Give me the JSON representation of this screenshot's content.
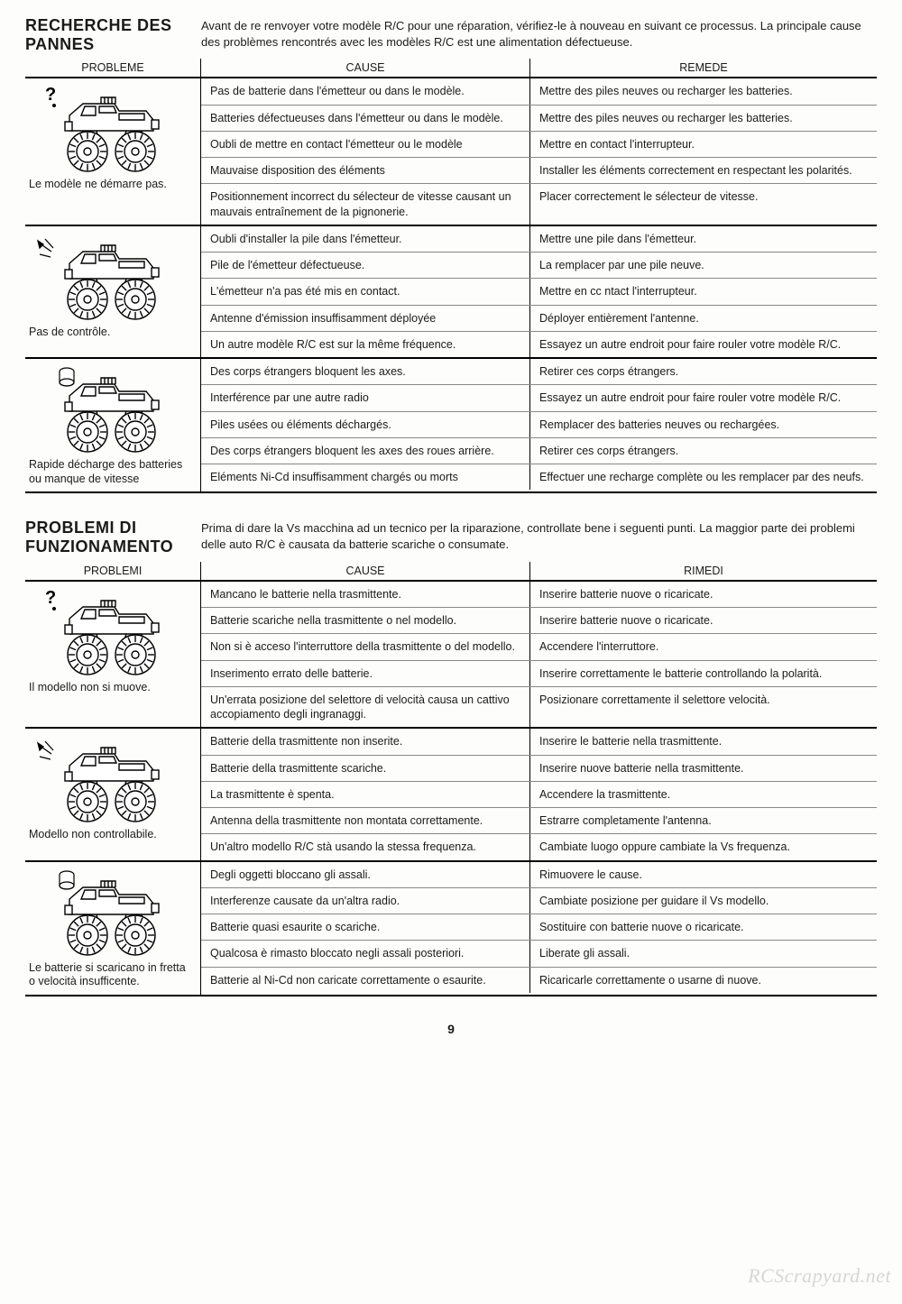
{
  "page_number": "9",
  "watermark": "RCScrapyard.net",
  "sections": [
    {
      "title": "RECHERCHE DES PANNES",
      "intro": "Avant de re renvoyer votre modèle R/C pour une réparation, vérifiez-le à nouveau en suivant ce processus. La principale cause des problèmes rencontrés avec les modèles R/C est une alimentation défectueuse.",
      "headers": {
        "h1": "PROBLEME",
        "h2": "CAUSE",
        "h3": "REMEDE"
      },
      "groups": [
        {
          "problem": "Le modèle ne démarre pas.",
          "icon": "question",
          "rows": [
            {
              "cause": "Pas de batterie dans l'émetteur ou dans le modèle.",
              "remedy": "Mettre des piles neuves ou recharger les batteries."
            },
            {
              "cause": "Batteries défectueuses dans l'émetteur ou dans le modèle.",
              "remedy": "Mettre des piles neuves ou recharger les batteries."
            },
            {
              "cause": "Oubli de mettre en contact l'émetteur ou le modèle",
              "remedy": "Mettre en contact l'interrupteur."
            },
            {
              "cause": "Mauvaise disposition des éléments",
              "remedy": "Installer les éléments correctement en respectant les polarités."
            },
            {
              "cause": "Positionnement incorrect du sélecteur de vitesse causant un mauvais entraînement de la pignonerie.",
              "remedy": "Placer correctement le sélecteur de vitesse."
            }
          ]
        },
        {
          "problem": "Pas de contrôle.",
          "icon": "sparks",
          "rows": [
            {
              "cause": "Oubli d'installer la pile dans l'émetteur.",
              "remedy": "Mettre une pile dans l'émetteur."
            },
            {
              "cause": "Pile de l'émetteur défectueuse.",
              "remedy": "La remplacer par une pile neuve."
            },
            {
              "cause": "L'émetteur n'a pas été mis en contact.",
              "remedy": "Mettre en cc ntact l'interrupteur."
            },
            {
              "cause": "Antenne d'émission insuffisamment déployée",
              "remedy": "Déployer entièrement l'antenne."
            },
            {
              "cause": "Un autre modèle R/C est sur la même fréquence.",
              "remedy": "Essayez un autre endroit pour faire rouler votre modèle R/C."
            }
          ]
        },
        {
          "problem": "Rapide décharge des batteries ou manque de vitesse",
          "icon": "battery",
          "rows": [
            {
              "cause": "Des corps étrangers bloquent les axes.",
              "remedy": "Retirer ces corps étrangers."
            },
            {
              "cause": "Interférence par une autre radio",
              "remedy": "Essayez un autre endroit pour faire rouler votre modèle R/C."
            },
            {
              "cause": "Piles usées ou éléments déchargés.",
              "remedy": "Remplacer des batteries neuves ou rechargées."
            },
            {
              "cause": "Des corps étrangers bloquent les axes des roues arrière.",
              "remedy": "Retirer ces corps étrangers."
            },
            {
              "cause": "Eléments Ni-Cd insuffisamment chargés ou morts",
              "remedy": "Effectuer une recharge complète ou les remplacer par des neufs."
            }
          ]
        }
      ]
    },
    {
      "title": "PROBLEMI DI FUNZIONAMENTO",
      "intro": "Prima di dare la Vs macchina ad un tecnico per la riparazione, controllate bene i seguenti punti. La maggior parte dei problemi delle auto R/C è causata da batterie scariche o consumate.",
      "headers": {
        "h1": "PROBLEMI",
        "h2": "CAUSE",
        "h3": "RIMEDI"
      },
      "groups": [
        {
          "problem": "Il modello non si muove.",
          "icon": "question",
          "rows": [
            {
              "cause": "Mancano le batterie nella trasmittente.",
              "remedy": "Inserire batterie nuove o ricaricate."
            },
            {
              "cause": "Batterie scariche nella trasmittente o nel modello.",
              "remedy": "Inserire batterie nuove o ricaricate."
            },
            {
              "cause": "Non si è acceso l'interruttore della trasmittente o del modello.",
              "remedy": "Accendere l'interruttore."
            },
            {
              "cause": "Inserimento errato delle batterie.",
              "remedy": "Inserire correttamente le batterie controllando la polarità."
            },
            {
              "cause": "Un'errata posizione del selettore di velocità causa un cattivo accopiamento degli ingranaggi.",
              "remedy": "Posizionare correttamente il selettore velocità."
            }
          ]
        },
        {
          "problem": "Modello non controllabile.",
          "icon": "sparks",
          "rows": [
            {
              "cause": "Batterie della trasmittente non inserite.",
              "remedy": "Inserire le batterie nella trasmittente."
            },
            {
              "cause": "Batterie della trasmittente scariche.",
              "remedy": "Inserire nuove batterie nella trasmittente."
            },
            {
              "cause": "La trasmittente è spenta.",
              "remedy": "Accendere la trasmittente."
            },
            {
              "cause": "Antenna della trasmittente non montata correttamente.",
              "remedy": "Estrarre completamente l'antenna."
            },
            {
              "cause": "Un'altro modello R/C stà usando la stessa frequenza.",
              "remedy": "Cambiate luogo oppure cambiate la Vs frequenza."
            }
          ]
        },
        {
          "problem": "Le batterie si scaricano in fretta o velocità insufficente.",
          "icon": "battery",
          "rows": [
            {
              "cause": "Degli oggetti bloccano gli assali.",
              "remedy": "Rimuovere le cause."
            },
            {
              "cause": "Interferenze causate da un'altra radio.",
              "remedy": "Cambiate posizione per guidare il Vs modello."
            },
            {
              "cause": "Batterie quasi esaurite o scariche.",
              "remedy": "Sostituire con batterie nuove o ricaricate."
            },
            {
              "cause": "Qualcosa è rimasto bloccato negli assali posteriori.",
              "remedy": "Liberate gli assali."
            },
            {
              "cause": "Batterie al Ni-Cd non caricate correttamente o esaurite.",
              "remedy": "Ricaricarle correttamente o usarne di nuove."
            }
          ]
        }
      ]
    }
  ]
}
